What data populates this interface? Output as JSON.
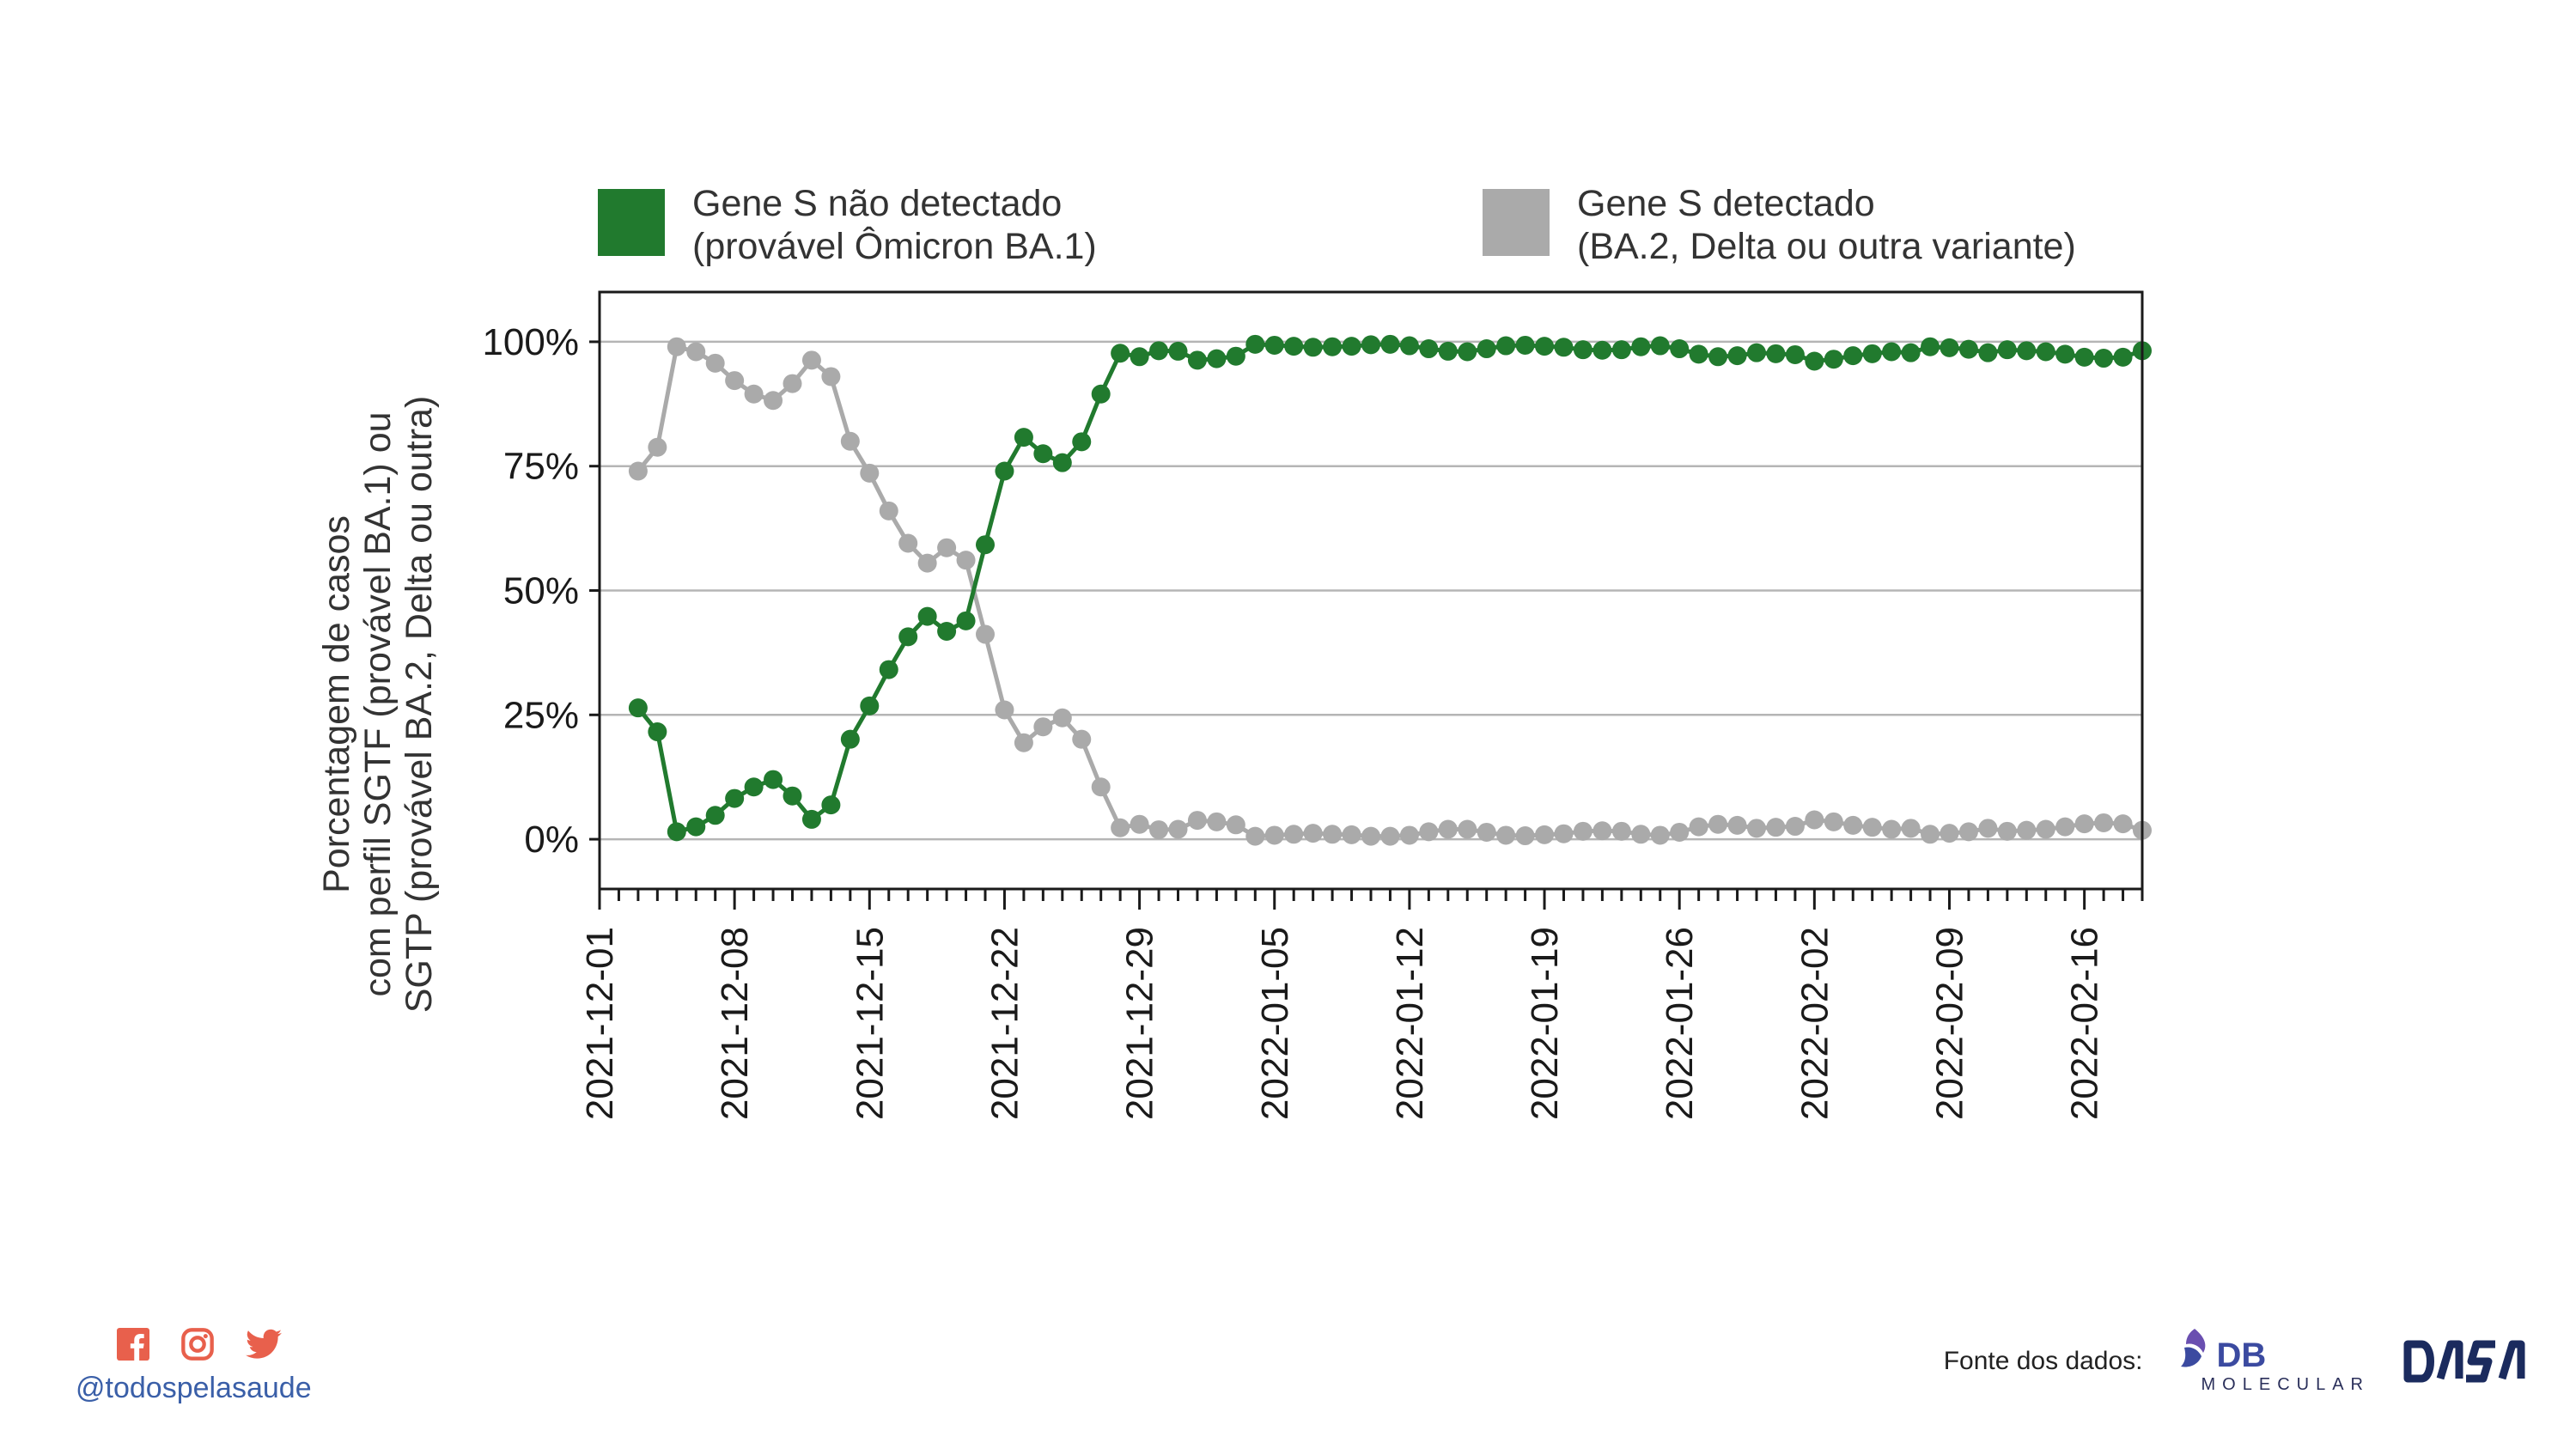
{
  "legend": [
    {
      "line1": "Gene S não detectado",
      "line2": "(provável Ômicron BA.1)",
      "color": "#217a2e"
    },
    {
      "line1": "Gene S detectado",
      "line2": "(BA.2, Delta ou outra variante)",
      "color": "#aaaaaa"
    }
  ],
  "ylabel_lines": [
    "Porcentagem de casos",
    "com perfil SGTF (provável BA.1) ou",
    "SGTP (provável BA.2, Delta ou outra)"
  ],
  "footer": {
    "handle": "@todospelasaude",
    "source_label": "Fonte dos dados:",
    "logo1_text": "DB",
    "logo1_sub": "MOLECULAR",
    "logo2_text": "DASA",
    "social_icons": [
      "facebook-icon",
      "instagram-icon",
      "twitter-icon"
    ],
    "social_color": "#e8604c"
  },
  "chart_data": {
    "type": "line",
    "x_start": "2021-12-01",
    "x_end": "2022-02-19",
    "x_tick_labels": [
      "2021-12-01",
      "2021-12-08",
      "2021-12-15",
      "2021-12-22",
      "2021-12-29",
      "2022-01-05",
      "2022-01-12",
      "2022-01-19",
      "2022-01-26",
      "2022-02-02",
      "2022-02-09",
      "2022-02-16"
    ],
    "y_tick_labels": [
      "0%",
      "25%",
      "50%",
      "75%",
      "100%"
    ],
    "y_ticks": [
      0,
      25,
      50,
      75,
      100
    ],
    "ylim": [
      -10,
      110
    ],
    "grid": "horizontal",
    "series": [
      {
        "name": "Gene S não detectado (provável Ômicron BA.1)",
        "color": "#217a2e",
        "points": [
          [
            "2021-12-03",
            26.4
          ],
          [
            "2021-12-04",
            21.6
          ],
          [
            "2021-12-05",
            1.5
          ],
          [
            "2021-12-06",
            2.5
          ],
          [
            "2021-12-07",
            4.8
          ],
          [
            "2021-12-08",
            8.2
          ],
          [
            "2021-12-09",
            10.5
          ],
          [
            "2021-12-10",
            12
          ],
          [
            "2021-12-11",
            8.7
          ],
          [
            "2021-12-12",
            4
          ],
          [
            "2021-12-13",
            6.9
          ],
          [
            "2021-12-14",
            20.1
          ],
          [
            "2021-12-15",
            26.8
          ],
          [
            "2021-12-16",
            34.1
          ],
          [
            "2021-12-17",
            40.7
          ],
          [
            "2021-12-18",
            44.8
          ],
          [
            "2021-12-19",
            41.8
          ],
          [
            "2021-12-20",
            43.9
          ],
          [
            "2021-12-21",
            59.2
          ],
          [
            "2021-12-22",
            74
          ],
          [
            "2021-12-23",
            80.8
          ],
          [
            "2021-12-24",
            77.5
          ],
          [
            "2021-12-25",
            75.7
          ],
          [
            "2021-12-26",
            79.9
          ],
          [
            "2021-12-27",
            89.5
          ],
          [
            "2021-12-28",
            97.7
          ],
          [
            "2021-12-29",
            97
          ],
          [
            "2021-12-30",
            98.2
          ],
          [
            "2021-12-31",
            98.1
          ],
          [
            "2022-01-01",
            96.3
          ],
          [
            "2022-01-02",
            96.6
          ],
          [
            "2022-01-03",
            97.1
          ],
          [
            "2022-01-04",
            99.5
          ],
          [
            "2022-01-05",
            99.3
          ],
          [
            "2022-01-06",
            99.1
          ],
          [
            "2022-01-07",
            98.9
          ],
          [
            "2022-01-08",
            99
          ],
          [
            "2022-01-09",
            99.1
          ],
          [
            "2022-01-10",
            99.4
          ],
          [
            "2022-01-11",
            99.5
          ],
          [
            "2022-01-12",
            99.2
          ],
          [
            "2022-01-13",
            98.6
          ],
          [
            "2022-01-14",
            98.1
          ],
          [
            "2022-01-15",
            98
          ],
          [
            "2022-01-16",
            98.6
          ],
          [
            "2022-01-17",
            99.2
          ],
          [
            "2022-01-18",
            99.3
          ],
          [
            "2022-01-19",
            99.1
          ],
          [
            "2022-01-20",
            98.9
          ],
          [
            "2022-01-21",
            98.4
          ],
          [
            "2022-01-22",
            98.3
          ],
          [
            "2022-01-23",
            98.4
          ],
          [
            "2022-01-24",
            99
          ],
          [
            "2022-01-25",
            99.2
          ],
          [
            "2022-01-26",
            98.6
          ],
          [
            "2022-01-27",
            97.5
          ],
          [
            "2022-01-28",
            97
          ],
          [
            "2022-01-29",
            97.2
          ],
          [
            "2022-01-30",
            97.8
          ],
          [
            "2022-01-31",
            97.6
          ],
          [
            "2022-02-01",
            97.4
          ],
          [
            "2022-02-02",
            96.1
          ],
          [
            "2022-02-03",
            96.5
          ],
          [
            "2022-02-04",
            97.2
          ],
          [
            "2022-02-05",
            97.6
          ],
          [
            "2022-02-06",
            98
          ],
          [
            "2022-02-07",
            97.8
          ],
          [
            "2022-02-08",
            99
          ],
          [
            "2022-02-09",
            98.8
          ],
          [
            "2022-02-10",
            98.5
          ],
          [
            "2022-02-11",
            97.8
          ],
          [
            "2022-02-12",
            98.4
          ],
          [
            "2022-02-13",
            98.2
          ],
          [
            "2022-02-14",
            98
          ],
          [
            "2022-02-15",
            97.5
          ],
          [
            "2022-02-16",
            96.9
          ],
          [
            "2022-02-17",
            96.7
          ],
          [
            "2022-02-18",
            96.9
          ],
          [
            "2022-02-19",
            98.2
          ]
        ]
      },
      {
        "name": "Gene S detectado (BA.2, Delta ou outra variante)",
        "color": "#aaaaaa",
        "points": [
          [
            "2021-12-03",
            74
          ],
          [
            "2021-12-04",
            78.8
          ],
          [
            "2021-12-05",
            99
          ],
          [
            "2021-12-06",
            98
          ],
          [
            "2021-12-07",
            95.7
          ],
          [
            "2021-12-08",
            92.2
          ],
          [
            "2021-12-09",
            89.5
          ],
          [
            "2021-12-10",
            88.2
          ],
          [
            "2021-12-11",
            91.6
          ],
          [
            "2021-12-12",
            96.3
          ],
          [
            "2021-12-13",
            93
          ],
          [
            "2021-12-14",
            80
          ],
          [
            "2021-12-15",
            73.6
          ],
          [
            "2021-12-16",
            66
          ],
          [
            "2021-12-17",
            59.5
          ],
          [
            "2021-12-18",
            55.5
          ],
          [
            "2021-12-19",
            58.6
          ],
          [
            "2021-12-20",
            56.1
          ],
          [
            "2021-12-21",
            41.2
          ],
          [
            "2021-12-22",
            26
          ],
          [
            "2021-12-23",
            19.4
          ],
          [
            "2021-12-24",
            22.6
          ],
          [
            "2021-12-25",
            24.4
          ],
          [
            "2021-12-26",
            20.1
          ],
          [
            "2021-12-27",
            10.5
          ],
          [
            "2021-12-28",
            2.3
          ],
          [
            "2021-12-29",
            3
          ],
          [
            "2021-12-30",
            1.9
          ],
          [
            "2021-12-31",
            2
          ],
          [
            "2022-01-01",
            3.8
          ],
          [
            "2022-01-02",
            3.5
          ],
          [
            "2022-01-03",
            2.9
          ],
          [
            "2022-01-04",
            0.6
          ],
          [
            "2022-01-05",
            0.8
          ],
          [
            "2022-01-06",
            1
          ],
          [
            "2022-01-07",
            1.2
          ],
          [
            "2022-01-08",
            1
          ],
          [
            "2022-01-09",
            0.9
          ],
          [
            "2022-01-10",
            0.6
          ],
          [
            "2022-01-11",
            0.6
          ],
          [
            "2022-01-12",
            0.8
          ],
          [
            "2022-01-13",
            1.5
          ],
          [
            "2022-01-14",
            2
          ],
          [
            "2022-01-15",
            2
          ],
          [
            "2022-01-16",
            1.4
          ],
          [
            "2022-01-17",
            0.8
          ],
          [
            "2022-01-18",
            0.7
          ],
          [
            "2022-01-19",
            0.9
          ],
          [
            "2022-01-20",
            1.1
          ],
          [
            "2022-01-21",
            1.6
          ],
          [
            "2022-01-22",
            1.7
          ],
          [
            "2022-01-23",
            1.6
          ],
          [
            "2022-01-24",
            1
          ],
          [
            "2022-01-25",
            0.8
          ],
          [
            "2022-01-26",
            1.4
          ],
          [
            "2022-01-27",
            2.5
          ],
          [
            "2022-01-28",
            3
          ],
          [
            "2022-01-29",
            2.8
          ],
          [
            "2022-01-30",
            2.2
          ],
          [
            "2022-01-31",
            2.4
          ],
          [
            "2022-02-01",
            2.6
          ],
          [
            "2022-02-02",
            3.9
          ],
          [
            "2022-02-03",
            3.5
          ],
          [
            "2022-02-04",
            2.8
          ],
          [
            "2022-02-05",
            2.4
          ],
          [
            "2022-02-06",
            2
          ],
          [
            "2022-02-07",
            2.2
          ],
          [
            "2022-02-08",
            1
          ],
          [
            "2022-02-09",
            1.2
          ],
          [
            "2022-02-10",
            1.5
          ],
          [
            "2022-02-11",
            2.2
          ],
          [
            "2022-02-12",
            1.6
          ],
          [
            "2022-02-13",
            1.8
          ],
          [
            "2022-02-14",
            2
          ],
          [
            "2022-02-15",
            2.5
          ],
          [
            "2022-02-16",
            3.1
          ],
          [
            "2022-02-17",
            3.3
          ],
          [
            "2022-02-18",
            3.1
          ],
          [
            "2022-02-19",
            1.8
          ]
        ]
      }
    ]
  }
}
